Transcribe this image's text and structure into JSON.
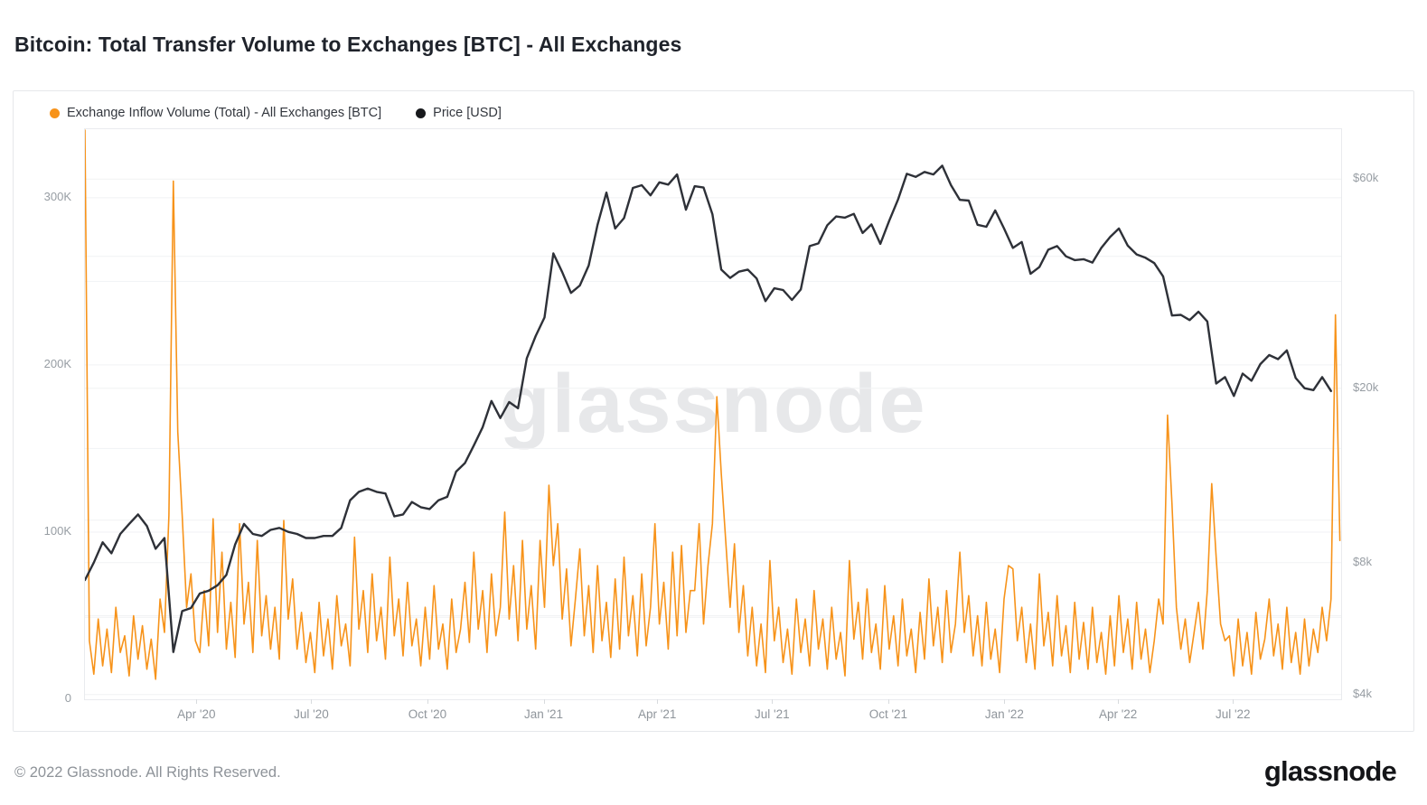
{
  "header": {
    "title": "Bitcoin: Total Transfer Volume to Exchanges [BTC] - All Exchanges"
  },
  "watermark": {
    "text": "glassnode"
  },
  "legend": {
    "items": [
      {
        "label": "Exchange Inflow Volume (Total) - All Exchanges [BTC]",
        "color": "#F7931A"
      },
      {
        "label": "Price [USD]",
        "color": "#17191C"
      }
    ]
  },
  "footer": {
    "copyright": "© 2022 Glassnode. All Rights Reserved.",
    "brand": "glassnode"
  },
  "chart_data": {
    "type": "line",
    "title": "Bitcoin: Total Transfer Volume to Exchanges [BTC] - All Exchanges",
    "x_start_date": "2020-01-03",
    "x_end_date": "2022-09-22",
    "x_total_days": 995,
    "grid": "on",
    "legend_position": "top-left",
    "x_ticks": [
      {
        "label": "Apr '20",
        "day": 89
      },
      {
        "label": "Jul '20",
        "day": 180
      },
      {
        "label": "Oct '20",
        "day": 272
      },
      {
        "label": "Jan '21",
        "day": 364
      },
      {
        "label": "Apr '21",
        "day": 454
      },
      {
        "label": "Jul '21",
        "day": 545
      },
      {
        "label": "Oct '21",
        "day": 637
      },
      {
        "label": "Jan '22",
        "day": 729
      },
      {
        "label": "Apr '22",
        "day": 819
      },
      {
        "label": "Jul '22",
        "day": 910
      }
    ],
    "left_axis": {
      "series": "Exchange Inflow Volume (Total) - All Exchanges [BTC]",
      "unit": "BTC",
      "scale": "linear",
      "range": [
        0,
        341000
      ],
      "gridline_step": 50000,
      "ticks": [
        {
          "label": "0",
          "value": 0
        },
        {
          "label": "100K",
          "value": 100000
        },
        {
          "label": "200K",
          "value": 200000
        },
        {
          "label": "300K",
          "value": 300000
        }
      ]
    },
    "right_axis": {
      "series": "Price [USD]",
      "unit": "USD",
      "scale": "log",
      "range": [
        3900,
        78000
      ],
      "gridlines": [
        60000,
        40000,
        20000,
        10000,
        8000,
        6000,
        4000
      ],
      "ticks": [
        {
          "label": "$60k",
          "value": 60000
        },
        {
          "label": "$20k",
          "value": 20000
        },
        {
          "label": "$8k",
          "value": 8000
        },
        {
          "label": "$4k",
          "value": 4000
        }
      ]
    },
    "series": [
      {
        "name": "Exchange Inflow Volume (Total) - All Exchanges [BTC]",
        "axis": "left",
        "color": "#F7931A",
        "stroke_width": 1.6,
        "unit": "thousand BTC",
        "value_multiplier": 1000,
        "interval_days": 3.5,
        "values": [
          345,
          35,
          15,
          48,
          20,
          42,
          16,
          55,
          28,
          38,
          14,
          50,
          24,
          44,
          18,
          36,
          12,
          60,
          40,
          110,
          310,
          160,
          110,
          55,
          75,
          35,
          28,
          65,
          32,
          108,
          40,
          88,
          30,
          58,
          25,
          105,
          45,
          70,
          28,
          95,
          38,
          62,
          30,
          55,
          24,
          107,
          48,
          72,
          30,
          52,
          22,
          40,
          16,
          58,
          26,
          48,
          18,
          62,
          32,
          45,
          20,
          97,
          42,
          65,
          28,
          75,
          35,
          55,
          24,
          85,
          38,
          60,
          26,
          70,
          32,
          48,
          20,
          55,
          24,
          68,
          30,
          45,
          18,
          60,
          28,
          42,
          70,
          34,
          88,
          42,
          65,
          28,
          75,
          38,
          55,
          112,
          48,
          80,
          35,
          95,
          42,
          68,
          30,
          95,
          55,
          128,
          80,
          105,
          48,
          78,
          32,
          60,
          90,
          38,
          68,
          28,
          80,
          35,
          58,
          25,
          72,
          30,
          85,
          38,
          62,
          26,
          75,
          32,
          55,
          105,
          45,
          70,
          30,
          88,
          38,
          92,
          40,
          65,
          65,
          105,
          45,
          80,
          105,
          181,
          135,
          95,
          55,
          93,
          40,
          68,
          26,
          55,
          20,
          45,
          16,
          83,
          35,
          55,
          22,
          42,
          15,
          60,
          28,
          48,
          20,
          65,
          30,
          48,
          18,
          55,
          24,
          40,
          14,
          83,
          36,
          58,
          24,
          66,
          28,
          45,
          18,
          68,
          30,
          50,
          20,
          60,
          26,
          42,
          16,
          52,
          24,
          72,
          32,
          55,
          22,
          65,
          28,
          45,
          88,
          40,
          62,
          26,
          50,
          20,
          58,
          24,
          42,
          16,
          60,
          80,
          78,
          35,
          55,
          22,
          45,
          18,
          75,
          32,
          52,
          20,
          62,
          26,
          44,
          16,
          58,
          24,
          46,
          18,
          55,
          22,
          40,
          15,
          50,
          20,
          62,
          28,
          48,
          18,
          58,
          24,
          42,
          16,
          35,
          60,
          45,
          170,
          117,
          55,
          30,
          48,
          22,
          40,
          58,
          30,
          65,
          129,
          85,
          45,
          35,
          38,
          14,
          48,
          20,
          40,
          15,
          52,
          24,
          36,
          60,
          26,
          45,
          18,
          55,
          22,
          40,
          15,
          48,
          20,
          42,
          28,
          55,
          35,
          60,
          230,
          95
        ]
      },
      {
        "name": "Price [USD]",
        "axis": "right",
        "color": "#2E3138",
        "stroke_width": 2.4,
        "unit": "thousand USD",
        "value_multiplier": 1000,
        "interval_days": 7,
        "values": [
          7.3,
          8.0,
          8.9,
          8.4,
          9.3,
          9.8,
          10.3,
          9.7,
          8.6,
          9.1,
          5.0,
          6.2,
          6.3,
          6.8,
          6.9,
          7.1,
          7.5,
          8.8,
          9.8,
          9.3,
          9.2,
          9.5,
          9.6,
          9.4,
          9.3,
          9.1,
          9.1,
          9.2,
          9.2,
          9.6,
          11.1,
          11.6,
          11.8,
          11.6,
          11.5,
          10.2,
          10.3,
          11.0,
          10.7,
          10.6,
          11.1,
          11.3,
          12.9,
          13.5,
          14.8,
          16.3,
          18.7,
          17.1,
          18.6,
          18.0,
          23.4,
          26.3,
          29.0,
          40.6,
          36.8,
          33.0,
          34.3,
          38.1,
          47.2,
          55.9,
          46.3,
          48.9,
          57.3,
          58.1,
          55.1,
          59.0,
          58.3,
          61.5,
          51.1,
          57.8,
          57.4,
          49.9,
          37.3,
          35.7,
          36.9,
          37.3,
          35.6,
          31.6,
          33.8,
          33.5,
          31.8,
          33.6,
          42.2,
          42.8,
          47.1,
          49.3,
          49.0,
          50.0,
          45.2,
          47.3,
          42.7,
          48.2,
          53.9,
          61.7,
          60.7,
          62.3,
          61.5,
          64.4,
          58.1,
          53.8,
          53.6,
          47.2,
          46.7,
          50.9,
          46.3,
          41.8,
          43.1,
          36.5,
          37.8,
          41.4,
          42.2,
          40.0,
          39.2,
          39.4,
          38.7,
          41.8,
          44.3,
          46.3,
          42.3,
          40.4,
          39.7,
          38.6,
          36.0,
          29.3,
          29.4,
          28.6,
          29.9,
          28.4,
          20.5,
          21.2,
          19.2,
          21.6,
          20.8,
          22.7,
          23.8,
          23.3,
          24.4,
          21.1,
          20.0,
          19.8,
          21.2,
          19.7
        ]
      }
    ]
  }
}
